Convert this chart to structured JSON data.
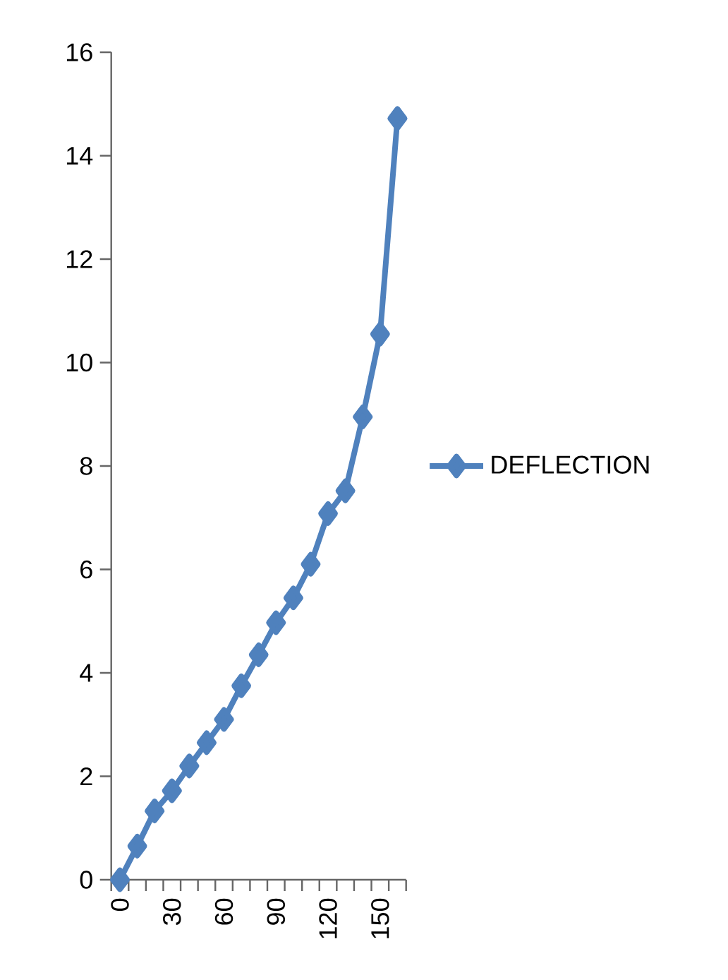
{
  "chart_data": {
    "type": "line",
    "categories": [
      "0",
      null,
      null,
      "30",
      null,
      null,
      "60",
      null,
      null,
      "90",
      null,
      null,
      "120",
      null,
      null,
      "150",
      null
    ],
    "series": [
      {
        "name": "DEFLECTION",
        "color": "#4f81bd",
        "values": [
          0,
          0.65,
          1.33,
          1.72,
          2.2,
          2.65,
          3.1,
          3.75,
          4.35,
          4.97,
          5.45,
          6.1,
          7.08,
          7.52,
          8.95,
          10.55,
          14.72
        ]
      }
    ],
    "ylim": [
      0,
      16
    ],
    "yticks": [
      0,
      2,
      4,
      6,
      8,
      10,
      12,
      14,
      16
    ],
    "marker": "diamond",
    "line_style": "solid",
    "legend": "right",
    "grid": false
  }
}
